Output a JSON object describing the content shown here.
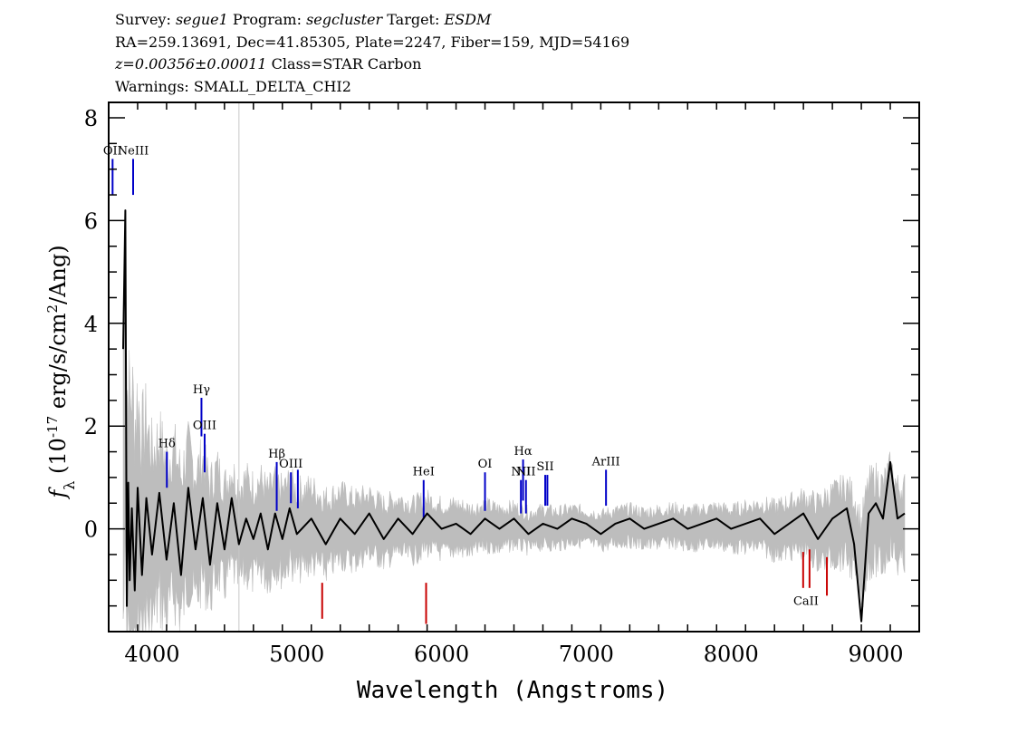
{
  "header": {
    "survey_label": "Survey:",
    "survey": "segue1",
    "program_label": "Program:",
    "program": "segcluster",
    "target_label": "Target:",
    "target": "ESDM",
    "line2": "RA=259.13691, Dec=41.85305, Plate=2247, Fiber=159, MJD=54169",
    "redshift": "z=0.00356±0.00011",
    "class": "Class=STAR Carbon",
    "warnings": "Warnings: SMALL_DELTA_CHI2"
  },
  "chart_data": {
    "type": "line",
    "xlabel": "Wavelength (Angstroms)",
    "ylabel": "fλ (10^-17 erg/s/cm²/Ang)",
    "xlim": [
      3700,
      9300
    ],
    "ylim": [
      -2,
      8.3
    ],
    "x_ticks": [
      4000,
      5000,
      6000,
      7000,
      8000,
      9000
    ],
    "y_ticks": [
      0,
      2,
      4,
      6,
      8
    ],
    "grid": false,
    "series": [
      {
        "color": "#000000",
        "x": [
          3800,
          3815,
          3825,
          3835,
          3845,
          3860,
          3880,
          3900,
          3930,
          3960,
          4000,
          4050,
          4100,
          4150,
          4200,
          4250,
          4300,
          4350,
          4400,
          4450,
          4500,
          4550,
          4600,
          4650,
          4700,
          4750,
          4800,
          4850,
          4900,
          4950,
          5000,
          5100,
          5200,
          5300,
          5400,
          5500,
          5600,
          5700,
          5800,
          5900,
          6000,
          6100,
          6200,
          6300,
          6400,
          6500,
          6600,
          6700,
          6800,
          6900,
          7000,
          7100,
          7200,
          7300,
          7400,
          7500,
          7600,
          7700,
          7800,
          7900,
          8000,
          8100,
          8200,
          8300,
          8400,
          8500,
          8600,
          8700,
          8800,
          8850,
          8900,
          8950,
          9000,
          9050,
          9100,
          9150,
          9200
        ],
        "y": [
          3.5,
          6.2,
          -1.5,
          0.9,
          -1.0,
          0.4,
          -1.2,
          0.8,
          -0.9,
          0.6,
          -0.5,
          0.7,
          -0.6,
          0.5,
          -0.9,
          0.8,
          -0.4,
          0.6,
          -0.7,
          0.5,
          -0.4,
          0.6,
          -0.3,
          0.2,
          -0.2,
          0.3,
          -0.4,
          0.3,
          -0.2,
          0.4,
          -0.1,
          0.2,
          -0.3,
          0.2,
          -0.1,
          0.3,
          -0.2,
          0.2,
          -0.1,
          0.3,
          0.0,
          0.1,
          -0.1,
          0.2,
          0.0,
          0.2,
          -0.1,
          0.1,
          0.0,
          0.2,
          0.1,
          -0.1,
          0.1,
          0.2,
          0.0,
          0.1,
          0.2,
          0.0,
          0.1,
          0.2,
          0.0,
          0.1,
          0.2,
          -0.1,
          0.1,
          0.3,
          -0.2,
          0.2,
          0.4,
          -0.3,
          -1.8,
          0.3,
          0.5,
          0.2,
          1.3,
          0.2,
          0.3
        ]
      }
    ],
    "error_envelope": {
      "color": "#bdbdbd",
      "x": [
        3800,
        4000,
        4500,
        5000,
        5500,
        6000,
        6500,
        7000,
        7500,
        8000,
        8500,
        9000,
        9200
      ],
      "halfwidth": [
        3.0,
        1.6,
        0.95,
        0.75,
        0.55,
        0.45,
        0.35,
        0.3,
        0.32,
        0.35,
        0.5,
        0.8,
        0.7
      ]
    },
    "vertical_marker": {
      "x": 4600,
      "color": "#c8c8c8"
    },
    "emission_lines": [
      {
        "label": "OII",
        "x": 3727,
        "y0": 6.5,
        "y1": 7.2,
        "color": "#0000c8"
      },
      {
        "label": "NeIII",
        "x": 3869,
        "y0": 6.5,
        "y1": 7.2,
        "color": "#0000c8"
      },
      {
        "label": "Hδ",
        "x": 4102,
        "y0": 0.8,
        "y1": 1.5,
        "color": "#0000c8"
      },
      {
        "label": "Hγ",
        "x": 4341,
        "y0": 1.8,
        "y1": 2.55,
        "color": "#0000c8"
      },
      {
        "label": "OIII",
        "x": 4363,
        "y0": 1.1,
        "y1": 1.85,
        "color": "#0000c8"
      },
      {
        "label": "Hβ",
        "x": 4861,
        "y0": 0.35,
        "y1": 1.3,
        "color": "#0000c8"
      },
      {
        "label": "OIII",
        "x": 4959,
        "y0": 0.5,
        "y1": 1.1,
        "color": "#0000c8"
      },
      {
        "label": "OIII",
        "x": 5007,
        "y0": 0.4,
        "y1": 1.15,
        "color": "#0000c8"
      },
      {
        "label": "HeI",
        "x": 5876,
        "y0": 0.2,
        "y1": 0.95,
        "color": "#0000c8"
      },
      {
        "label": "OI",
        "x": 6300,
        "y0": 0.35,
        "y1": 1.1,
        "color": "#0000c8"
      },
      {
        "label": "NII",
        "x": 6548,
        "y0": 0.3,
        "y1": 0.95,
        "color": "#0000c8"
      },
      {
        "label": "Hα",
        "x": 6563,
        "y0": 0.55,
        "y1": 1.35,
        "color": "#0000c8"
      },
      {
        "label": "NII",
        "x": 6583,
        "y0": 0.3,
        "y1": 0.95,
        "color": "#0000c8"
      },
      {
        "label": "SII",
        "x": 6716,
        "y0": 0.45,
        "y1": 1.05,
        "color": "#0000c8"
      },
      {
        "label": "SII",
        "x": 6731,
        "y0": 0.45,
        "y1": 1.05,
        "color": "#0000c8"
      },
      {
        "label": "ArIII",
        "x": 7136,
        "y0": 0.45,
        "y1": 1.15,
        "color": "#0000c8"
      }
    ],
    "absorption_lines": [
      {
        "x": 5175,
        "y0": -1.75,
        "y1": -1.05,
        "color": "#c80000"
      },
      {
        "x": 5893,
        "y0": -1.85,
        "y1": -1.05,
        "color": "#c80000"
      },
      {
        "x": 8498,
        "y0": -1.15,
        "y1": -0.45,
        "color": "#c80000"
      },
      {
        "x": 8542,
        "y0": -1.15,
        "y1": -0.4,
        "color": "#c80000"
      },
      {
        "x": 8662,
        "y0": -1.3,
        "y1": -0.55,
        "color": "#c80000"
      }
    ],
    "absorption_label": {
      "label": "CaII",
      "x": 8430,
      "y": -1.48
    }
  }
}
